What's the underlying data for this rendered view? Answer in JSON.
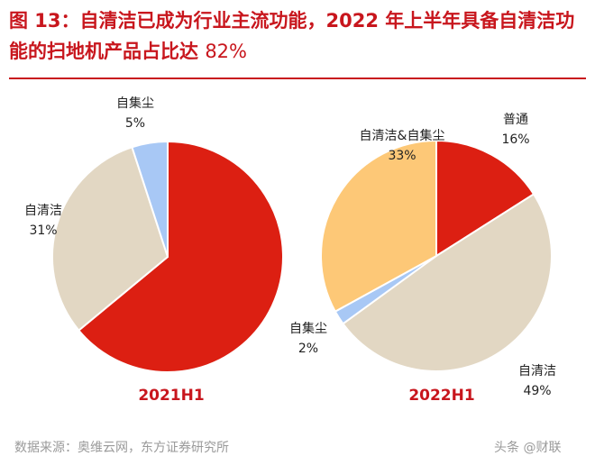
{
  "header": {
    "title": "图 13：自清洁已成为行业主流功能，2022 年上半年具备自清洁功能的扫地机产品占比达",
    "title_pct": "82%"
  },
  "footer": {
    "source": "数据来源：奥维云网，东方证券研究所",
    "brand": "头条 @财联"
  },
  "colors": {
    "red": "#dc1f12",
    "beige": "#e2d7c3",
    "light_blue": "#a8c8f5",
    "orange": "#fdc877",
    "title_red": "#c8161d"
  },
  "chart_data": [
    {
      "type": "pie",
      "title": "2021H1",
      "slices": [
        {
          "name": "",
          "value": 64,
          "pct_label": "",
          "color": "#dc1f12"
        },
        {
          "name": "自清洁",
          "value": 31,
          "pct_label": "31%",
          "color": "#e2d7c3"
        },
        {
          "name": "自集尘",
          "value": 5,
          "pct_label": "5%",
          "color": "#a8c8f5"
        }
      ]
    },
    {
      "type": "pie",
      "title": "2022H1",
      "slices": [
        {
          "name": "普通",
          "value": 16,
          "pct_label": "16%",
          "color": "#dc1f12"
        },
        {
          "name": "自清洁",
          "value": 49,
          "pct_label": "49%",
          "color": "#e2d7c3"
        },
        {
          "name": "自集尘",
          "value": 2,
          "pct_label": "2%",
          "color": "#a8c8f5"
        },
        {
          "name": "自清洁&自集尘",
          "value": 33,
          "pct_label": "33%",
          "color": "#fdc877"
        }
      ]
    }
  ]
}
